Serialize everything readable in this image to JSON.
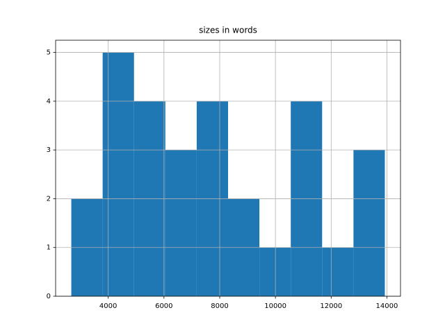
{
  "chart_data": {
    "type": "histogram",
    "title": "sizes in words",
    "bins": [
      2675,
      3800,
      4925,
      6050,
      7175,
      8300,
      9425,
      10550,
      11675,
      12800,
      13925
    ],
    "counts": [
      2,
      5,
      4,
      3,
      4,
      2,
      1,
      4,
      1,
      3
    ],
    "color": "#1f77b4",
    "xlim": [
      2112.5,
      14487.5
    ],
    "xticks": [
      4000,
      6000,
      8000,
      10000,
      12000,
      14000
    ],
    "ylim": [
      0,
      5.25
    ],
    "yticks": [
      0,
      1,
      2,
      3,
      4,
      5
    ],
    "grid": true
  }
}
